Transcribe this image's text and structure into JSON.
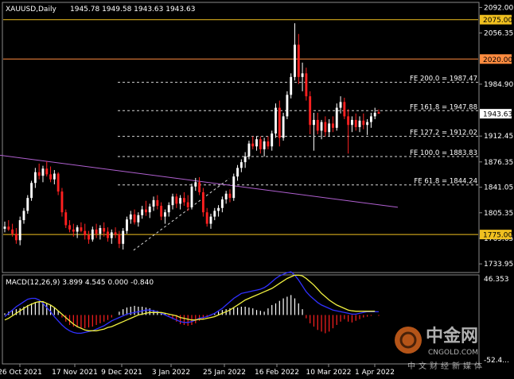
{
  "window": {
    "symbol_label": "XAUUSD,Daily",
    "ohlc_label": "1945.78 1949.58 1943.63 1943.63"
  },
  "watermark": {
    "name_cn": "中金网",
    "name_en": "CNGOLD.COM",
    "slogan": "中文财经新媒体"
  },
  "colors": {
    "background": "#000000",
    "bull": "#ffffff",
    "bear": "#ff2020",
    "support_resistance": "#f0c020",
    "resistance_orange": "#ff8c40",
    "trendline": "#b060d0",
    "macd_hist_pos": "#ffffff",
    "macd_hist_neg": "#ff2020",
    "macd_line": "#3030ff",
    "signal_line": "#f0f040",
    "price_tag": "#f0c020"
  },
  "chart_data": {
    "type": "candlestick",
    "price_axis": {
      "range": [
        1723,
        2098
      ],
      "ticks": [
        "2092.00",
        "2056.35",
        "1984.90",
        "1912.45",
        "1876.35",
        "1841.05",
        "1805.35",
        "1769.65",
        "1733.95"
      ]
    },
    "price_tags": [
      "2075.00",
      "2020.00",
      "1943.63",
      "1775.00"
    ],
    "current_price": 1943.63,
    "horizontal_levels": [
      {
        "price": 2075.0,
        "label": "2075.00"
      },
      {
        "price": 2020.0,
        "label": "2020.00"
      },
      {
        "price": 1775.0,
        "label": "1775.00"
      }
    ],
    "fibonacci_levels": [
      {
        "price": 1987.47,
        "label": "FE 200.0 = 1987.47"
      },
      {
        "price": 1947.88,
        "label": "FE 161.8 = 1947.88"
      },
      {
        "price": 1912.02,
        "label": "FE 127.2 = 1912.02"
      },
      {
        "price": 1883.83,
        "label": "FE 100.0 = 1883.83"
      },
      {
        "price": 1844.24,
        "label": "FE 61.8 = 1844.24"
      }
    ],
    "trendline": {
      "from": {
        "date": "2021-10-15",
        "price": 1887
      },
      "to": {
        "date": "2022-04-12",
        "price": 1813
      }
    },
    "dashed_trendline": {
      "from": {
        "date": "2021-12-15",
        "price": 1753
      },
      "to": {
        "date": "2022-01-27",
        "price": 1853
      }
    },
    "x_axis": {
      "labels": [
        "26 Oct 2021",
        "17 Nov 2021",
        "9 Dec 2021",
        "3 Jan 2022",
        "25 Jan 2022",
        "16 Feb 2022",
        "10 Mar 2022",
        "1 Apr 2022"
      ]
    },
    "candles": [
      [
        1783,
        1793,
        1778,
        1786
      ],
      [
        1786,
        1795,
        1780,
        1782
      ],
      [
        1782,
        1790,
        1772,
        1776
      ],
      [
        1776,
        1784,
        1762,
        1767
      ],
      [
        1767,
        1800,
        1760,
        1795
      ],
      [
        1795,
        1812,
        1790,
        1808
      ],
      [
        1808,
        1830,
        1804,
        1826
      ],
      [
        1826,
        1850,
        1822,
        1847
      ],
      [
        1847,
        1868,
        1840,
        1862
      ],
      [
        1862,
        1874,
        1852,
        1857
      ],
      [
        1857,
        1871,
        1848,
        1867
      ],
      [
        1867,
        1877,
        1856,
        1859
      ],
      [
        1859,
        1870,
        1848,
        1852
      ],
      [
        1852,
        1865,
        1845,
        1860
      ],
      [
        1860,
        1862,
        1830,
        1835
      ],
      [
        1835,
        1840,
        1800,
        1806
      ],
      [
        1806,
        1810,
        1784,
        1788
      ],
      [
        1788,
        1795,
        1778,
        1782
      ],
      [
        1782,
        1790,
        1772,
        1779
      ],
      [
        1779,
        1788,
        1770,
        1785
      ],
      [
        1785,
        1792,
        1778,
        1780
      ],
      [
        1780,
        1790,
        1768,
        1774
      ],
      [
        1774,
        1780,
        1762,
        1768
      ],
      [
        1768,
        1786,
        1765,
        1782
      ],
      [
        1782,
        1790,
        1770,
        1776
      ],
      [
        1776,
        1788,
        1768,
        1784
      ],
      [
        1784,
        1792,
        1772,
        1779
      ],
      [
        1779,
        1785,
        1765,
        1770
      ],
      [
        1770,
        1782,
        1762,
        1778
      ],
      [
        1778,
        1785,
        1770,
        1775
      ],
      [
        1775,
        1780,
        1756,
        1762
      ],
      [
        1762,
        1784,
        1754,
        1780
      ],
      [
        1780,
        1800,
        1776,
        1796
      ],
      [
        1796,
        1808,
        1790,
        1803
      ],
      [
        1803,
        1810,
        1789,
        1792
      ],
      [
        1792,
        1806,
        1786,
        1802
      ],
      [
        1802,
        1815,
        1797,
        1810
      ],
      [
        1810,
        1822,
        1801,
        1806
      ],
      [
        1806,
        1818,
        1798,
        1814
      ],
      [
        1814,
        1828,
        1808,
        1823
      ],
      [
        1823,
        1830,
        1810,
        1815
      ],
      [
        1815,
        1820,
        1795,
        1800
      ],
      [
        1800,
        1810,
        1790,
        1806
      ],
      [
        1806,
        1820,
        1800,
        1816
      ],
      [
        1816,
        1832,
        1810,
        1828
      ],
      [
        1828,
        1832,
        1812,
        1818
      ],
      [
        1818,
        1830,
        1810,
        1826
      ],
      [
        1826,
        1834,
        1815,
        1820
      ],
      [
        1820,
        1830,
        1808,
        1813
      ],
      [
        1813,
        1846,
        1810,
        1842
      ],
      [
        1842,
        1854,
        1836,
        1848
      ],
      [
        1848,
        1855,
        1830,
        1834
      ],
      [
        1834,
        1840,
        1800,
        1806
      ],
      [
        1806,
        1812,
        1786,
        1790
      ],
      [
        1790,
        1804,
        1783,
        1800
      ],
      [
        1800,
        1812,
        1795,
        1808
      ],
      [
        1808,
        1816,
        1800,
        1812
      ],
      [
        1812,
        1828,
        1806,
        1824
      ],
      [
        1824,
        1836,
        1818,
        1832
      ],
      [
        1832,
        1838,
        1820,
        1826
      ],
      [
        1826,
        1860,
        1822,
        1856
      ],
      [
        1856,
        1872,
        1850,
        1868
      ],
      [
        1868,
        1880,
        1862,
        1876
      ],
      [
        1876,
        1890,
        1868,
        1884
      ],
      [
        1884,
        1906,
        1880,
        1902
      ],
      [
        1902,
        1912,
        1894,
        1898
      ],
      [
        1898,
        1912,
        1892,
        1908
      ],
      [
        1908,
        1912,
        1888,
        1894
      ],
      [
        1894,
        1910,
        1884,
        1905
      ],
      [
        1905,
        1912,
        1894,
        1898
      ],
      [
        1898,
        1920,
        1892,
        1916
      ],
      [
        1916,
        1958,
        1910,
        1952
      ],
      [
        1952,
        1962,
        1898,
        1910
      ],
      [
        1910,
        1945,
        1906,
        1940
      ],
      [
        1940,
        1975,
        1936,
        1970
      ],
      [
        1970,
        2000,
        1965,
        1995
      ],
      [
        1995,
        2070,
        1990,
        2040
      ],
      [
        2040,
        2055,
        1985,
        1995
      ],
      [
        1995,
        2015,
        1975,
        2000
      ],
      [
        2000,
        2008,
        1962,
        1968
      ],
      [
        1968,
        1975,
        1915,
        1928
      ],
      [
        1928,
        1945,
        1892,
        1935
      ],
      [
        1935,
        1945,
        1915,
        1920
      ],
      [
        1920,
        1935,
        1908,
        1932
      ],
      [
        1932,
        1940,
        1912,
        1918
      ],
      [
        1918,
        1936,
        1912,
        1930
      ],
      [
        1930,
        1940,
        1918,
        1924
      ],
      [
        1924,
        1958,
        1920,
        1952
      ],
      [
        1952,
        1968,
        1944,
        1960
      ],
      [
        1960,
        1966,
        1936,
        1940
      ],
      [
        1940,
        1950,
        1888,
        1928
      ],
      [
        1928,
        1940,
        1918,
        1935
      ],
      [
        1935,
        1944,
        1920,
        1925
      ],
      [
        1925,
        1940,
        1918,
        1934
      ],
      [
        1934,
        1944,
        1922,
        1928
      ],
      [
        1928,
        1936,
        1914,
        1932
      ],
      [
        1932,
        1945,
        1924,
        1940
      ],
      [
        1940,
        1952,
        1936,
        1945
      ],
      [
        1945.78,
        1949.58,
        1943.63,
        1943.63
      ]
    ],
    "macd": {
      "label": "MACD(12,26,9) 3.899 4.545 0.000 -0.840",
      "params": [
        12,
        26,
        9
      ],
      "values": [
        3.899,
        4.545,
        0.0,
        -0.84
      ],
      "axis_ticks": [
        "46.353",
        "-52.4..."
      ],
      "range": [
        -57,
        46.353
      ],
      "histogram": [
        2,
        4,
        6,
        7,
        8,
        10,
        12,
        14,
        15,
        16,
        16,
        14,
        12,
        9,
        5,
        -3,
        -8,
        -12,
        -14,
        -15,
        -16,
        -16,
        -15,
        -14,
        -12,
        -10,
        -8,
        -6,
        -3,
        0,
        4,
        7,
        9,
        10,
        11,
        10,
        10,
        9,
        8,
        6,
        5,
        3,
        2,
        -2,
        -5,
        -8,
        -11,
        -12,
        -13,
        -12,
        -10,
        -7,
        -5,
        -3,
        -1,
        2,
        4,
        6,
        7,
        8,
        9,
        9,
        10,
        10,
        9,
        8,
        6,
        5,
        4,
        8,
        12,
        14,
        17,
        20,
        22,
        24,
        20,
        14,
        7,
        -4,
        -10,
        -14,
        -18,
        -20,
        -22,
        -20,
        -16,
        -12,
        -8,
        -5,
        -8,
        -9,
        -7,
        -5,
        -3,
        -2,
        -1,
        0,
        -1
      ],
      "macd_line": [
        -2,
        2,
        6,
        10,
        13,
        16,
        19,
        20,
        20,
        18,
        14,
        9,
        4,
        -2,
        -7,
        -12,
        -16,
        -19,
        -21,
        -22,
        -22,
        -21,
        -20,
        -19,
        -17,
        -15,
        -13,
        -10,
        -7,
        -5,
        -3,
        -1,
        1,
        2,
        3,
        4,
        5,
        6,
        6,
        5,
        4,
        2,
        0,
        -2,
        -4,
        -6,
        -8,
        -9,
        -9,
        -8,
        -6,
        -4,
        -3,
        -2,
        0,
        2,
        5,
        8,
        12,
        16,
        20,
        23,
        26,
        27,
        28,
        29,
        30,
        31,
        33,
        36,
        40,
        44,
        47,
        49,
        51,
        52,
        48,
        42,
        35,
        28,
        23,
        19,
        15,
        12,
        10,
        8,
        6,
        5,
        4,
        3,
        2,
        1,
        1,
        2,
        3,
        4,
        4,
        4,
        3.899
      ],
      "signal_line": [
        -6,
        -4,
        -1,
        2,
        5,
        8,
        11,
        13,
        15,
        16,
        16,
        14,
        12,
        9,
        5,
        1,
        -3,
        -7,
        -11,
        -14,
        -16,
        -18,
        -19,
        -19,
        -19,
        -18,
        -17,
        -15,
        -14,
        -12,
        -10,
        -8,
        -6,
        -4,
        -2,
        0,
        1,
        2,
        3,
        3,
        3,
        3,
        2,
        1,
        0,
        -1,
        -3,
        -4,
        -5,
        -6,
        -6,
        -5,
        -5,
        -4,
        -3,
        -2,
        0,
        2,
        4,
        6,
        9,
        12,
        15,
        18,
        20,
        22,
        24,
        26,
        28,
        30,
        32,
        35,
        38,
        41,
        44,
        46,
        48,
        48,
        47,
        44,
        40,
        36,
        31,
        26,
        22,
        18,
        15,
        12,
        10,
        8,
        6,
        5,
        4.5,
        4.5,
        4.5,
        4.5,
        4.5,
        4.545
      ]
    }
  }
}
